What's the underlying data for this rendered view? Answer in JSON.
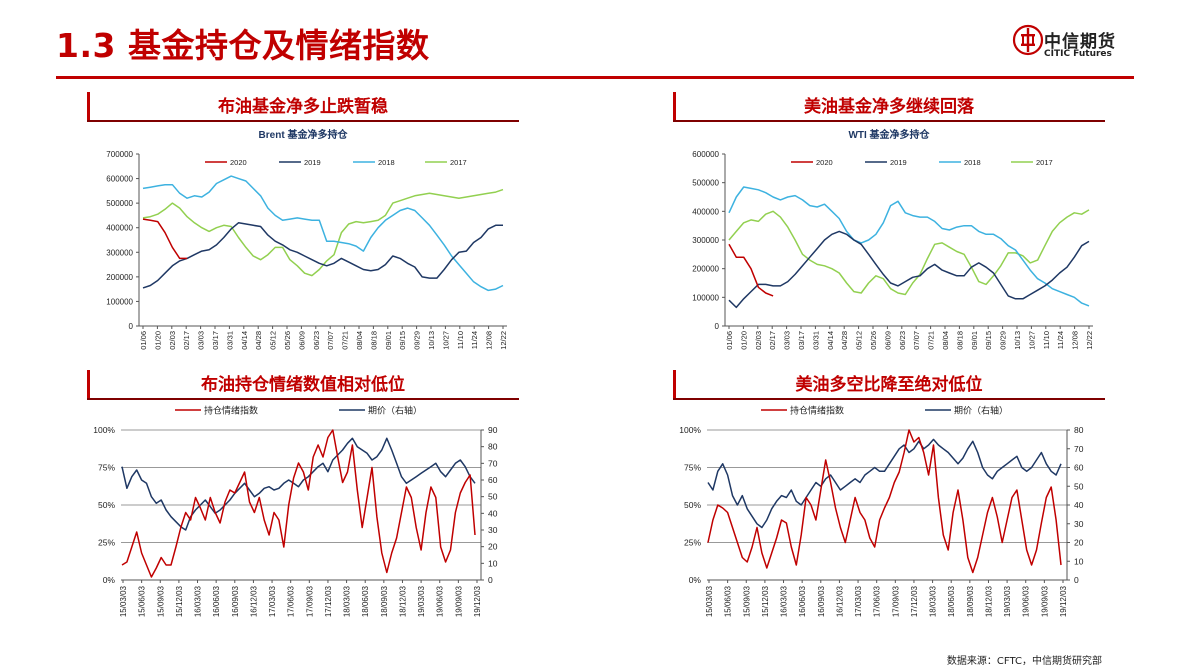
{
  "header": {
    "title": "1.3 基金持仓及情绪指数",
    "logo_cn": "中信期货",
    "logo_en": "CITIC Futures",
    "brand_color": "#c00000"
  },
  "panels": [
    {
      "title": "布油基金净多止跌暂稳"
    },
    {
      "title": "美油基金净多继续回落"
    },
    {
      "title": "布油持仓情绪数值相对低位"
    },
    {
      "title": "美油多空比降至绝对低位"
    }
  ],
  "footer": {
    "source": "数据来源：CFTC，中信期货研究部"
  },
  "chart_data": [
    {
      "id": "brent-net-long",
      "type": "line",
      "title": "Brent 基金净多持仓",
      "x_ticks": [
        "01/06",
        "01/20",
        "02/03",
        "02/17",
        "03/03",
        "03/17",
        "03/31",
        "04/14",
        "04/28",
        "05/12",
        "05/26",
        "06/09",
        "06/23",
        "07/07",
        "07/21",
        "08/04",
        "08/18",
        "09/01",
        "09/15",
        "09/29",
        "10/13",
        "10/27",
        "11/10",
        "11/24",
        "12/08",
        "12/22"
      ],
      "ylim": [
        0,
        700000
      ],
      "y_ticks": [
        0,
        100000,
        200000,
        300000,
        400000,
        500000,
        600000,
        700000
      ],
      "legend_position": "top",
      "series": [
        {
          "name": "2020",
          "color": "#c00000",
          "values": [
            435000,
            430000,
            425000,
            380000,
            320000,
            275000,
            275000
          ]
        },
        {
          "name": "2019",
          "color": "#1f3864",
          "values": [
            155000,
            165000,
            185000,
            215000,
            245000,
            265000,
            275000,
            290000,
            305000,
            310000,
            330000,
            360000,
            395000,
            420000,
            415000,
            410000,
            405000,
            370000,
            345000,
            330000,
            310000,
            300000,
            285000,
            270000,
            255000,
            245000,
            255000,
            275000,
            260000,
            245000,
            230000,
            225000,
            230000,
            250000,
            285000,
            275000,
            255000,
            240000,
            200000,
            195000,
            195000,
            230000,
            270000,
            300000,
            305000,
            340000,
            360000,
            395000,
            410000,
            410000
          ]
        },
        {
          "name": "2018",
          "color": "#3db2e0",
          "values": [
            560000,
            565000,
            570000,
            575000,
            575000,
            540000,
            520000,
            530000,
            525000,
            545000,
            580000,
            595000,
            610000,
            600000,
            590000,
            560000,
            530000,
            480000,
            450000,
            430000,
            435000,
            440000,
            435000,
            430000,
            430000,
            345000,
            345000,
            340000,
            335000,
            325000,
            305000,
            360000,
            400000,
            430000,
            450000,
            470000,
            480000,
            470000,
            440000,
            410000,
            370000,
            330000,
            285000,
            250000,
            215000,
            180000,
            160000,
            145000,
            150000,
            165000
          ]
        },
        {
          "name": "2017",
          "color": "#92d050",
          "values": [
            440000,
            445000,
            455000,
            475000,
            500000,
            480000,
            445000,
            420000,
            400000,
            385000,
            400000,
            410000,
            405000,
            360000,
            320000,
            285000,
            270000,
            290000,
            320000,
            320000,
            270000,
            245000,
            215000,
            205000,
            230000,
            265000,
            290000,
            380000,
            415000,
            425000,
            420000,
            425000,
            430000,
            450000,
            500000,
            510000,
            520000,
            530000,
            535000,
            540000,
            535000,
            530000,
            525000,
            520000,
            525000,
            530000,
            535000,
            540000,
            545000,
            555000
          ]
        }
      ]
    },
    {
      "id": "wti-net-long",
      "type": "line",
      "title": "WTI 基金净多持仓",
      "x_ticks": [
        "01/06",
        "01/20",
        "02/03",
        "02/17",
        "03/03",
        "03/17",
        "03/31",
        "04/14",
        "04/28",
        "05/12",
        "05/26",
        "06/09",
        "06/23",
        "07/07",
        "07/21",
        "08/04",
        "08/18",
        "09/01",
        "09/15",
        "09/29",
        "10/13",
        "10/27",
        "11/10",
        "11/24",
        "12/08",
        "12/22"
      ],
      "ylim": [
        0,
        600000
      ],
      "y_ticks": [
        0,
        100000,
        200000,
        300000,
        400000,
        500000,
        600000
      ],
      "legend_position": "top",
      "series": [
        {
          "name": "2020",
          "color": "#c00000",
          "values": [
            285000,
            240000,
            240000,
            200000,
            135000,
            115000,
            105000
          ]
        },
        {
          "name": "2019",
          "color": "#1f3864",
          "values": [
            90000,
            65000,
            95000,
            120000,
            145000,
            145000,
            140000,
            140000,
            155000,
            180000,
            210000,
            240000,
            270000,
            300000,
            320000,
            330000,
            320000,
            300000,
            285000,
            250000,
            215000,
            180000,
            150000,
            140000,
            155000,
            170000,
            175000,
            200000,
            215000,
            195000,
            185000,
            175000,
            175000,
            205000,
            220000,
            205000,
            185000,
            145000,
            105000,
            95000,
            95000,
            110000,
            125000,
            140000,
            160000,
            185000,
            205000,
            240000,
            280000,
            295000
          ]
        },
        {
          "name": "2018",
          "color": "#3db2e0",
          "values": [
            395000,
            450000,
            485000,
            480000,
            475000,
            465000,
            450000,
            440000,
            450000,
            455000,
            440000,
            420000,
            415000,
            425000,
            400000,
            375000,
            330000,
            300000,
            290000,
            300000,
            320000,
            360000,
            420000,
            435000,
            395000,
            385000,
            380000,
            380000,
            365000,
            340000,
            335000,
            345000,
            350000,
            350000,
            330000,
            320000,
            320000,
            305000,
            280000,
            265000,
            230000,
            195000,
            165000,
            150000,
            130000,
            120000,
            110000,
            100000,
            80000,
            70000
          ]
        },
        {
          "name": "2017",
          "color": "#92d050",
          "values": [
            300000,
            330000,
            360000,
            370000,
            365000,
            390000,
            400000,
            380000,
            345000,
            300000,
            250000,
            230000,
            215000,
            210000,
            200000,
            185000,
            150000,
            120000,
            115000,
            150000,
            175000,
            165000,
            130000,
            115000,
            110000,
            150000,
            180000,
            235000,
            285000,
            290000,
            275000,
            260000,
            250000,
            205000,
            155000,
            145000,
            175000,
            210000,
            255000,
            255000,
            245000,
            220000,
            230000,
            280000,
            330000,
            360000,
            380000,
            395000,
            390000,
            405000
          ]
        }
      ]
    },
    {
      "id": "brent-sentiment",
      "type": "line",
      "x_ticks": [
        "15/03/03",
        "15/06/03",
        "15/09/03",
        "15/12/03",
        "16/03/03",
        "16/06/03",
        "16/09/03",
        "16/12/03",
        "17/03/03",
        "17/06/03",
        "17/09/03",
        "17/12/03",
        "18/03/03",
        "18/06/03",
        "18/09/03",
        "18/12/03",
        "19/03/03",
        "19/06/03",
        "19/09/03",
        "19/12/03"
      ],
      "y_left": {
        "ylim": [
          0,
          100
        ],
        "ticks": [
          "0%",
          "25%",
          "50%",
          "75%",
          "100%"
        ]
      },
      "y_right": {
        "ylim": [
          0,
          90
        ],
        "ticks": [
          0,
          10,
          20,
          30,
          40,
          50,
          60,
          70,
          80,
          90
        ]
      },
      "legend_position": "top",
      "series": [
        {
          "name": "持仓情绪指数",
          "axis": "left",
          "color": "#c00000",
          "values": [
            10,
            12,
            22,
            32,
            18,
            10,
            2,
            8,
            15,
            10,
            10,
            22,
            35,
            45,
            40,
            55,
            48,
            40,
            55,
            45,
            38,
            52,
            60,
            58,
            65,
            72,
            52,
            45,
            55,
            40,
            30,
            45,
            40,
            22,
            50,
            68,
            78,
            72,
            60,
            82,
            90,
            82,
            95,
            100,
            82,
            65,
            72,
            90,
            60,
            35,
            55,
            75,
            42,
            18,
            5,
            18,
            28,
            45,
            62,
            55,
            35,
            20,
            45,
            62,
            55,
            22,
            12,
            20,
            45,
            58,
            65,
            70,
            30
          ]
        },
        {
          "name": "期价（右轴）",
          "axis": "right",
          "color": "#1f3864",
          "values": [
            68,
            55,
            62,
            66,
            60,
            58,
            50,
            46,
            48,
            42,
            38,
            35,
            32,
            30,
            38,
            42,
            45,
            48,
            44,
            40,
            42,
            45,
            48,
            52,
            55,
            58,
            54,
            50,
            52,
            55,
            56,
            54,
            55,
            58,
            60,
            58,
            56,
            60,
            62,
            65,
            68,
            70,
            65,
            72,
            75,
            78,
            82,
            85,
            80,
            78,
            76,
            72,
            74,
            78,
            85,
            78,
            70,
            62,
            58,
            60,
            62,
            64,
            66,
            68,
            70,
            65,
            62,
            66,
            70,
            72,
            68,
            62,
            58
          ]
        }
      ]
    },
    {
      "id": "wti-sentiment",
      "type": "line",
      "x_ticks": [
        "15/03/03",
        "15/06/03",
        "15/09/03",
        "15/12/03",
        "16/03/03",
        "16/06/03",
        "16/09/03",
        "16/12/03",
        "17/03/03",
        "17/06/03",
        "17/09/03",
        "17/12/03",
        "18/03/03",
        "18/06/03",
        "18/09/03",
        "18/12/03",
        "19/03/03",
        "19/06/03",
        "19/09/03",
        "19/12/03"
      ],
      "y_left": {
        "ylim": [
          0,
          100
        ],
        "ticks": [
          "0%",
          "25%",
          "50%",
          "75%",
          "100%"
        ]
      },
      "y_right": {
        "ylim": [
          0,
          80
        ],
        "ticks": [
          0,
          10,
          20,
          30,
          40,
          50,
          60,
          70,
          80
        ]
      },
      "legend_position": "top",
      "series": [
        {
          "name": "持仓情绪指数",
          "axis": "left",
          "color": "#c00000",
          "values": [
            25,
            40,
            50,
            48,
            45,
            35,
            25,
            15,
            12,
            22,
            35,
            18,
            8,
            18,
            28,
            40,
            38,
            22,
            10,
            30,
            55,
            50,
            40,
            60,
            80,
            65,
            48,
            35,
            25,
            40,
            55,
            45,
            40,
            28,
            22,
            40,
            48,
            55,
            65,
            72,
            85,
            100,
            92,
            95,
            85,
            70,
            90,
            55,
            30,
            20,
            45,
            60,
            40,
            15,
            5,
            15,
            30,
            45,
            55,
            42,
            25,
            40,
            55,
            60,
            40,
            20,
            10,
            20,
            38,
            55,
            62,
            40,
            10
          ]
        },
        {
          "name": "期价（右轴）",
          "axis": "right",
          "color": "#1f3864",
          "values": [
            52,
            48,
            58,
            62,
            56,
            45,
            40,
            45,
            38,
            34,
            30,
            28,
            32,
            38,
            42,
            45,
            44,
            48,
            42,
            40,
            44,
            48,
            52,
            50,
            54,
            56,
            52,
            48,
            50,
            52,
            54,
            52,
            56,
            58,
            60,
            58,
            58,
            62,
            66,
            70,
            72,
            68,
            70,
            74,
            70,
            72,
            75,
            72,
            70,
            68,
            65,
            62,
            65,
            70,
            74,
            68,
            60,
            56,
            54,
            58,
            60,
            62,
            64,
            66,
            60,
            58,
            60,
            64,
            68,
            62,
            58,
            56,
            62
          ]
        }
      ]
    }
  ]
}
